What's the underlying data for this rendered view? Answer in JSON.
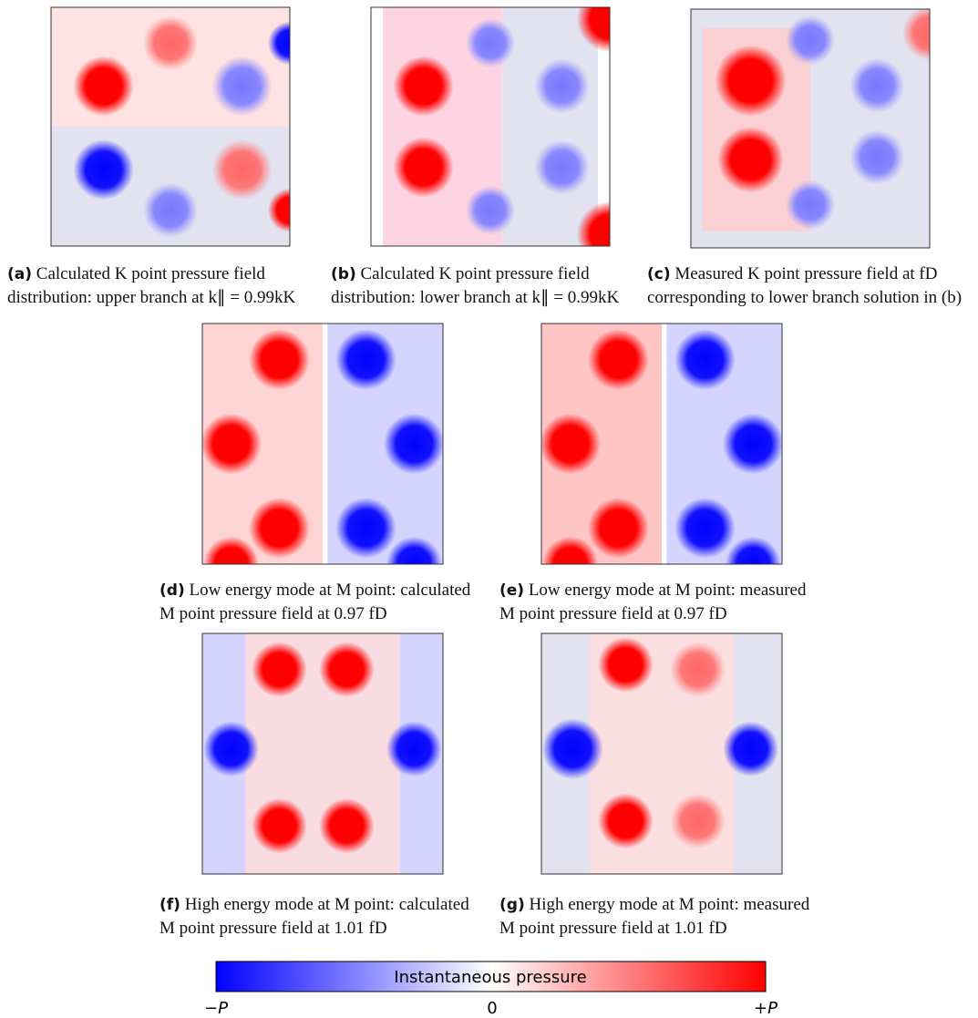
{
  "panels": [
    {
      "tag": "(a)",
      "caption": "Calculated K point pressure field distribution: upper branch at k∥ = 0.99kK"
    },
    {
      "tag": "(b)",
      "caption": "Calculated K point pressure field distribution: lower branch at k∥ = 0.99kK"
    },
    {
      "tag": "(c)",
      "caption": "Measured K point pressure field at fD corresponding to lower branch solution in (b)"
    },
    {
      "tag": "(d)",
      "caption": "Low energy mode at M point: calculated M point pressure field at 0.97 fD"
    },
    {
      "tag": "(e)",
      "caption": "Low energy mode at M point: measured M point pressure field at 0.97 fD"
    },
    {
      "tag": "(f)",
      "caption": "High energy mode at M point: calculated M point pressure field at 1.01 fD"
    },
    {
      "tag": "(g)",
      "caption": "High energy mode at M point: measured M point pressure field at 1.01 fD"
    }
  ],
  "colorbar": {
    "label": "Instantaneous pressure",
    "ticks": [
      "−P",
      "0",
      "+P"
    ]
  }
}
